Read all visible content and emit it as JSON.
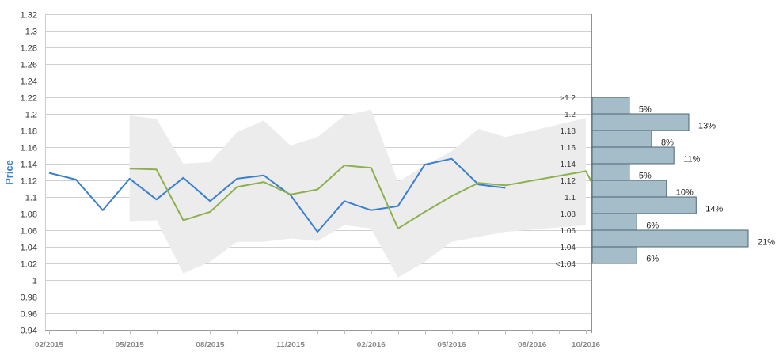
{
  "chart_data": {
    "type": "line",
    "ylabel": "Price",
    "ylim": [
      0.94,
      1.32
    ],
    "y_ticks": [
      "1.32",
      "1.3",
      "1.28",
      "1.26",
      "1.24",
      "1.22",
      "1.2",
      "1.18",
      "1.16",
      "1.14",
      "1.12",
      "1.1",
      "1.08",
      "1.06",
      "1.04",
      "1.02",
      "1",
      "0.98",
      "0.96",
      "0.94"
    ],
    "x_ticks": [
      "02/2015",
      "05/2015",
      "08/2015",
      "11/2015",
      "02/2016",
      "05/2016",
      "08/2016",
      "10/2016"
    ],
    "grid": true,
    "colors": {
      "series_blue": "#3a7fd0",
      "series_green": "#8cb04e",
      "band": "#ececec",
      "hist_fill": "#a5bcc9",
      "hist_stroke": "#4d6674",
      "axis_label": "#3a7fd0"
    },
    "series": [
      {
        "key": "blue",
        "x": [
          "02/2015",
          "03/2015",
          "04/2015",
          "05/2015",
          "06/2015",
          "07/2015",
          "08/2015",
          "09/2015",
          "10/2015",
          "11/2015",
          "12/2015",
          "01/2016",
          "02/2016",
          "03/2016",
          "04/2016",
          "05/2016",
          "06/2016",
          "07/2016"
        ],
        "values": [
          1.129,
          1.121,
          1.084,
          1.122,
          1.097,
          1.123,
          1.095,
          1.122,
          1.126,
          1.102,
          1.058,
          1.095,
          1.084,
          1.089,
          1.139,
          1.146,
          1.115,
          1.111
        ]
      },
      {
        "key": "green",
        "x": [
          "05/2015",
          "06/2015",
          "07/2015",
          "08/2015",
          "09/2015",
          "10/2015",
          "11/2015",
          "12/2015",
          "01/2016",
          "02/2016",
          "03/2016",
          "04/2016",
          "05/2016",
          "06/2016",
          "07/2016",
          "10/2016",
          "10/2016+"
        ],
        "values": [
          1.134,
          1.133,
          1.072,
          1.082,
          1.112,
          1.118,
          1.103,
          1.109,
          1.138,
          1.135,
          1.062,
          1.082,
          1.101,
          1.117,
          1.114,
          1.131,
          1.113
        ]
      }
    ],
    "band": {
      "x": [
        "05/2015",
        "06/2015",
        "07/2015",
        "08/2015",
        "09/2015",
        "10/2015",
        "11/2015",
        "12/2015",
        "01/2016",
        "02/2016",
        "03/2016",
        "04/2016",
        "05/2016",
        "06/2016",
        "07/2016",
        "10/2016"
      ],
      "upper": [
        1.198,
        1.194,
        1.14,
        1.142,
        1.178,
        1.192,
        1.162,
        1.172,
        1.198,
        1.205,
        1.118,
        1.138,
        1.155,
        1.182,
        1.172,
        1.195
      ],
      "lower": [
        1.07,
        1.072,
        1.008,
        1.022,
        1.046,
        1.046,
        1.05,
        1.047,
        1.066,
        1.062,
        1.003,
        1.022,
        1.046,
        1.052,
        1.058,
        1.066
      ]
    },
    "histogram": {
      "bins": [
        ">1.2",
        "1.2",
        "1.18",
        "1.16",
        "1.14",
        "1.12",
        "1.1",
        "1.08",
        "1.06",
        "1.04",
        "<1.04"
      ],
      "percents": [
        "5%",
        "13%",
        "8%",
        "11%",
        "5%",
        "10%",
        "14%",
        "6%",
        "21%",
        "6%"
      ],
      "values": [
        5,
        13,
        8,
        11,
        5,
        10,
        14,
        6,
        21,
        6
      ]
    }
  }
}
